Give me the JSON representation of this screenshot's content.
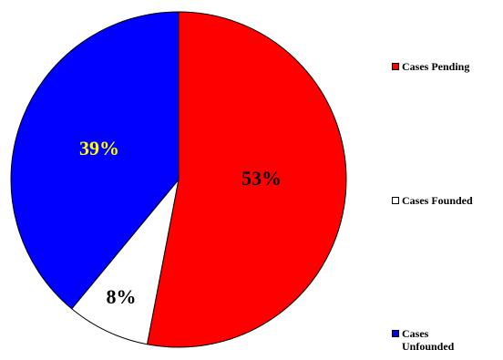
{
  "chart_data": {
    "type": "pie",
    "slices": [
      {
        "name": "Cases Pending",
        "value": 53,
        "label": "53%",
        "color": "#ff0000",
        "label_color": "#000000"
      },
      {
        "name": "Cases Founded",
        "value": 8,
        "label": "8%",
        "color": "#ffffff",
        "label_color": "#000000"
      },
      {
        "name": "Cases Unfounded",
        "value": 39,
        "label": "39%",
        "color": "#0000ff",
        "label_color": "#ffff00"
      }
    ],
    "legend_position": "right",
    "legend": [
      {
        "label": "Cases Pending",
        "color": "#ff0000"
      },
      {
        "label": "Cases Founded",
        "color": "#ffffff"
      },
      {
        "label": "Cases Unfounded",
        "color": "#0000ff"
      }
    ]
  }
}
